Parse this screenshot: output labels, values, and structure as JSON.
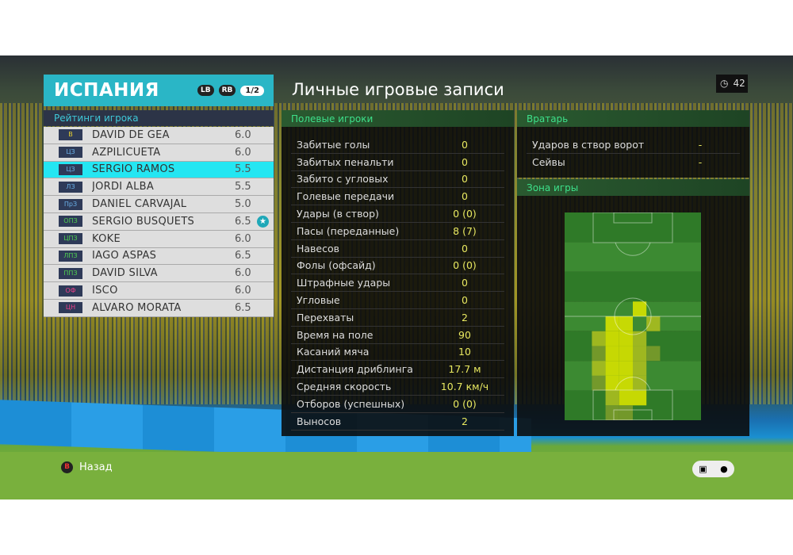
{
  "team": {
    "name": "ИСПАНИЯ",
    "lb": "LB",
    "rb": "RB",
    "page": "1/2"
  },
  "ratings": {
    "title": "Рейтинги игрока",
    "players": [
      {
        "pos": "В",
        "pos_color": "#e8d030",
        "name": "DAVID DE GEA",
        "rating": "6.0"
      },
      {
        "pos": "ЦЗ",
        "pos_color": "#6ab0e8",
        "name": "AZPILICUETA",
        "rating": "6.0"
      },
      {
        "pos": "ЦЗ",
        "pos_color": "#6ab0e8",
        "name": "SERGIO RAMOS",
        "rating": "5.5",
        "selected": true
      },
      {
        "pos": "ЛЗ",
        "pos_color": "#6ab0e8",
        "name": "JORDI ALBA",
        "rating": "5.5"
      },
      {
        "pos": "ПрЗ",
        "pos_color": "#6ab0e8",
        "name": "DANIEL CARVAJAL",
        "rating": "5.0"
      },
      {
        "pos": "ОПЗ",
        "pos_color": "#50d050",
        "name": "SERGIO BUSQUETS",
        "rating": "6.5",
        "star": true
      },
      {
        "pos": "ЦПЗ",
        "pos_color": "#50d050",
        "name": "KOKE",
        "rating": "6.0"
      },
      {
        "pos": "ЛПЗ",
        "pos_color": "#50d050",
        "name": "IAGO ASPAS",
        "rating": "6.5"
      },
      {
        "pos": "ППЗ",
        "pos_color": "#50d050",
        "name": "DAVID SILVA",
        "rating": "6.0"
      },
      {
        "pos": "ОФ",
        "pos_color": "#f0408a",
        "name": "ISCO",
        "rating": "6.0"
      },
      {
        "pos": "ЦН",
        "pos_color": "#f0408a",
        "name": "ÁLVARO MORATA",
        "rating": "6.5"
      }
    ]
  },
  "records": {
    "title": "Личные игровые записи",
    "timer": "42",
    "field": {
      "title": "Полевые игроки",
      "stats": [
        {
          "label": "Забитые голы",
          "value": "0"
        },
        {
          "label": "Забитых пенальти",
          "value": "0"
        },
        {
          "label": "Забито с угловых",
          "value": "0"
        },
        {
          "label": "Голевые передачи",
          "value": "0"
        },
        {
          "label": "Удары (в створ)",
          "value": "0 (0)"
        },
        {
          "label": "Пасы (переданные)",
          "value": "8 (7)"
        },
        {
          "label": "Навесов",
          "value": "0"
        },
        {
          "label": "Фолы (офсайд)",
          "value": "0 (0)"
        },
        {
          "label": "Штрафные удары",
          "value": "0"
        },
        {
          "label": "Угловые",
          "value": "0"
        },
        {
          "label": "Перехваты",
          "value": "2"
        },
        {
          "label": "Время на поле",
          "value": "90"
        },
        {
          "label": "Касаний мяча",
          "value": "10"
        },
        {
          "label": "Дистанция дриблинга",
          "value": "17.7 м"
        },
        {
          "label": "Средняя скорость",
          "value": "10.7 км/ч"
        },
        {
          "label": "Отборов (успешных)",
          "value": "0 (0)"
        },
        {
          "label": "Выносов",
          "value": "2"
        }
      ]
    },
    "goalkeeper": {
      "title": "Вратарь",
      "stats": [
        {
          "label": "Ударов в створ ворот",
          "value": "-"
        },
        {
          "label": "Сейвы",
          "value": "-"
        }
      ]
    },
    "zone": {
      "title": "Зона игры",
      "heatmap": [
        [
          6,
          5,
          3
        ],
        [
          7,
          3,
          3
        ],
        [
          7,
          4,
          3
        ],
        [
          7,
          6,
          2
        ],
        [
          8,
          2,
          2
        ],
        [
          8,
          3,
          3
        ],
        [
          8,
          4,
          3
        ],
        [
          8,
          5,
          2
        ],
        [
          9,
          2,
          1
        ],
        [
          9,
          3,
          3
        ],
        [
          9,
          4,
          3
        ],
        [
          9,
          5,
          2
        ],
        [
          9,
          6,
          1
        ],
        [
          10,
          2,
          2
        ],
        [
          10,
          3,
          3
        ],
        [
          10,
          4,
          3
        ],
        [
          10,
          5,
          2
        ],
        [
          11,
          2,
          1
        ],
        [
          11,
          3,
          3
        ],
        [
          11,
          4,
          3
        ],
        [
          11,
          5,
          2
        ],
        [
          12,
          3,
          2
        ],
        [
          12,
          4,
          3
        ],
        [
          12,
          5,
          3
        ],
        [
          13,
          3,
          1
        ],
        [
          13,
          4,
          1
        ]
      ]
    }
  },
  "footer": {
    "back_button": "B",
    "back_label": "Назад"
  }
}
